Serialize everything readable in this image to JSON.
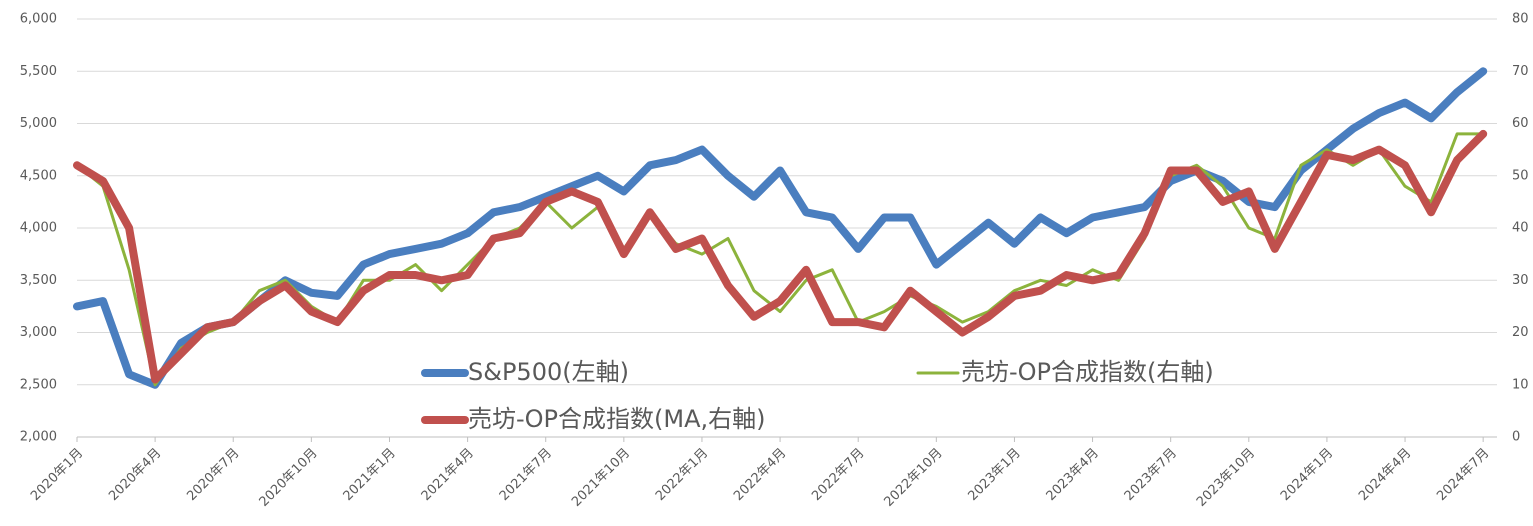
{
  "chart_data": {
    "type": "line",
    "categories": [
      "2020年1月",
      null,
      null,
      "2020年4月",
      null,
      null,
      "2020年7月",
      null,
      null,
      "2020年10月",
      null,
      null,
      "2021年1月",
      null,
      null,
      "2021年4月",
      null,
      null,
      "2021年7月",
      null,
      null,
      "2021年10月",
      null,
      null,
      "2022年1月",
      null,
      null,
      "2022年4月",
      null,
      null,
      "2022年7月",
      null,
      null,
      "2022年10月",
      null,
      null,
      "2023年1月",
      null,
      null,
      "2023年4月",
      null,
      null,
      "2023年7月",
      null,
      null,
      "2023年10月",
      null,
      null,
      "2024年1月",
      null,
      null,
      "2024年4月",
      null,
      null,
      "2024年7月"
    ],
    "series": [
      {
        "name": "S&P500(左軸)",
        "color": "#4a7ebf",
        "values": [
          3250,
          3300,
          2600,
          2500,
          2900,
          3050,
          3100,
          3300,
          3500,
          3380,
          3350,
          3650,
          3750,
          3800,
          3850,
          3950,
          4150,
          4200,
          4300,
          4400,
          4500,
          4350,
          4600,
          4650,
          4750,
          4500,
          4300,
          4550,
          4150,
          4100,
          3800,
          4100,
          4100,
          3650,
          3850,
          4050,
          3850,
          4100,
          3950,
          4100,
          4150,
          4200,
          4450,
          4550,
          4450,
          4250,
          4200,
          4550,
          4750,
          4950,
          5100,
          5200,
          5050,
          5300,
          5500
        ]
      },
      {
        "name": "売坊-OP合成指数(右軸)",
        "color": "#8cb33c",
        "axis": "y2",
        "values": [
          52,
          48,
          32,
          10,
          17,
          20,
          22,
          28,
          30,
          25,
          22,
          30,
          30,
          33,
          28,
          33,
          38,
          40,
          45,
          40,
          44,
          36,
          43,
          37,
          35,
          38,
          28,
          24,
          30,
          32,
          22,
          24,
          27,
          25,
          22,
          24,
          28,
          30,
          29,
          32,
          30,
          38,
          50,
          52,
          48,
          40,
          38,
          52,
          55,
          52,
          55,
          48,
          45,
          58,
          58
        ]
      },
      {
        "name": "売坊-OP合成指数(MA,右軸)",
        "color": "#c0504d",
        "axis": "y2",
        "values": [
          52,
          49,
          40,
          11,
          16,
          21,
          22,
          26,
          29,
          24,
          22,
          28,
          31,
          31,
          30,
          31,
          38,
          39,
          45,
          47,
          45,
          35,
          43,
          36,
          38,
          29,
          23,
          26,
          32,
          22,
          22,
          21,
          28,
          24,
          20,
          23,
          27,
          28,
          31,
          30,
          31,
          39,
          51,
          51,
          45,
          47,
          36,
          45,
          54,
          53,
          55,
          52,
          43,
          53,
          58
        ]
      }
    ],
    "ylim": [
      2000,
      6000
    ],
    "yticks": [
      {
        "value": 2000,
        "label": "2,000"
      },
      {
        "value": 2500,
        "label": "2,500"
      },
      {
        "value": 3000,
        "label": "3,000"
      },
      {
        "value": 3500,
        "label": "3,500"
      },
      {
        "value": 4000,
        "label": "4,000"
      },
      {
        "value": 4500,
        "label": "4,500"
      },
      {
        "value": 5000,
        "label": "5,000"
      },
      {
        "value": 5500,
        "label": "5,500"
      },
      {
        "value": 6000,
        "label": "6,000"
      }
    ],
    "y2lim": [
      0,
      80
    ],
    "y2ticks": [
      0,
      10,
      20,
      30,
      40,
      50,
      60,
      70,
      80
    ],
    "grid": true
  }
}
